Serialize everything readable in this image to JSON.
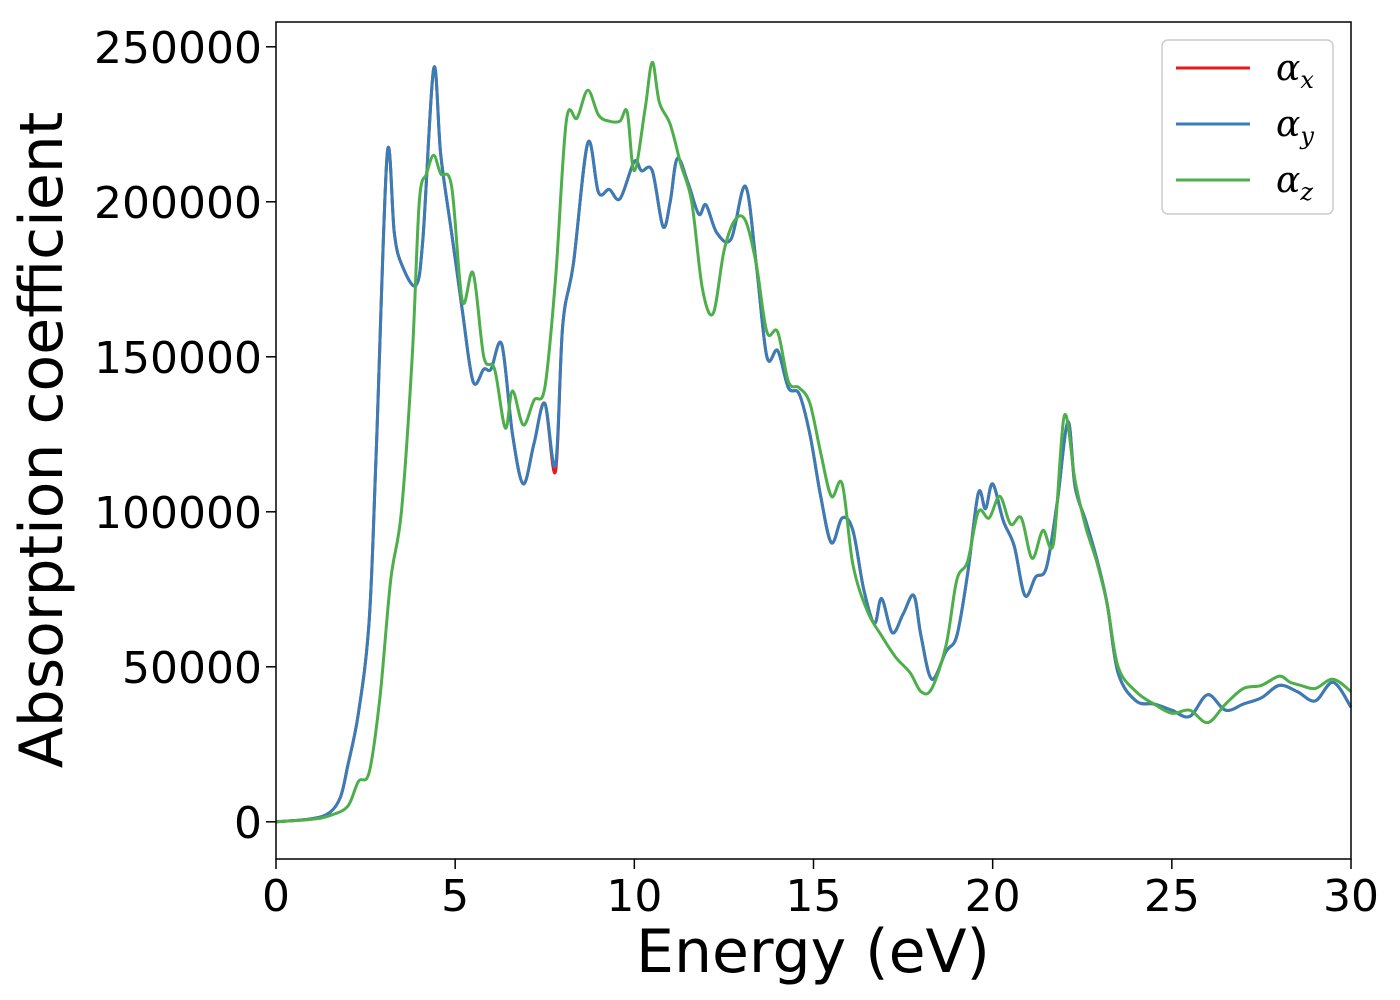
{
  "chart_data": {
    "type": "line",
    "title": "",
    "xlabel": "Energy (eV)",
    "ylabel": "Absorption coefficient",
    "xlim": [
      0,
      30
    ],
    "ylim": [
      -12000,
      258000
    ],
    "xticks": [
      0,
      5,
      10,
      15,
      20,
      25,
      30
    ],
    "yticks": [
      0,
      50000,
      100000,
      150000,
      200000,
      250000
    ],
    "grid": false,
    "legend_position": "top-right",
    "series": [
      {
        "name": "α_x",
        "symbol": "α",
        "subscript": "x",
        "color": "#e41a1c",
        "x": [
          0,
          1,
          1.5,
          1.8,
          2.0,
          2.3,
          2.6,
          2.8,
          3.1,
          3.3,
          3.5,
          3.9,
          4.1,
          4.4,
          4.6,
          4.9,
          5.2,
          5.5,
          5.8,
          6.0,
          6.3,
          6.6,
          6.9,
          7.2,
          7.5,
          7.8,
          8.0,
          8.3,
          8.7,
          9.0,
          9.3,
          9.6,
          10.0,
          10.2,
          10.5,
          10.8,
          11.0,
          11.2,
          11.5,
          11.8,
          12.0,
          12.3,
          12.7,
          13.1,
          13.4,
          13.7,
          14.0,
          14.3,
          14.6,
          14.9,
          15.2,
          15.5,
          15.8,
          16.1,
          16.4,
          16.7,
          16.9,
          17.2,
          17.5,
          17.8,
          18.0,
          18.3,
          18.7,
          19.0,
          19.3,
          19.6,
          19.8,
          20.0,
          20.3,
          20.6,
          20.9,
          21.2,
          21.5,
          21.8,
          22.1,
          22.3,
          22.6,
          22.9,
          23.2,
          23.5,
          24.0,
          24.5,
          25.0,
          25.5,
          26.0,
          26.5,
          27.0,
          27.5,
          28.0,
          28.5,
          29.0,
          29.5,
          30.0
        ],
        "y": [
          0,
          1000,
          3000,
          8000,
          18000,
          35000,
          65000,
          120000,
          215000,
          190000,
          180000,
          173000,
          188000,
          243000,
          215000,
          190000,
          165000,
          142000,
          146000,
          146000,
          154000,
          125000,
          109000,
          122000,
          135000,
          113000,
          160000,
          180000,
          219000,
          203000,
          204000,
          201000,
          213000,
          210000,
          210000,
          192000,
          200000,
          214000,
          206000,
          196000,
          199000,
          190000,
          188000,
          205000,
          180000,
          150000,
          152000,
          140000,
          138000,
          125000,
          105000,
          90000,
          98000,
          94000,
          75000,
          64000,
          72000,
          61000,
          67000,
          73000,
          60000,
          46000,
          55000,
          60000,
          80000,
          106000,
          101000,
          109000,
          97000,
          89000,
          73000,
          79000,
          82000,
          103000,
          129000,
          108000,
          97000,
          85000,
          70000,
          48000,
          39000,
          38000,
          36000,
          34000,
          41000,
          36000,
          38000,
          40000,
          44000,
          42000,
          39000,
          45000,
          37000
        ]
      },
      {
        "name": "α_y",
        "symbol": "α",
        "subscript": "y",
        "color": "#377eb8",
        "x": [
          0,
          1,
          1.5,
          1.8,
          2.0,
          2.3,
          2.6,
          2.8,
          3.1,
          3.3,
          3.5,
          3.9,
          4.1,
          4.4,
          4.6,
          4.9,
          5.2,
          5.5,
          5.8,
          6.0,
          6.3,
          6.6,
          6.9,
          7.2,
          7.5,
          7.8,
          8.0,
          8.3,
          8.7,
          9.0,
          9.3,
          9.6,
          10.0,
          10.2,
          10.5,
          10.8,
          11.0,
          11.2,
          11.5,
          11.8,
          12.0,
          12.3,
          12.7,
          13.1,
          13.4,
          13.7,
          14.0,
          14.3,
          14.6,
          14.9,
          15.2,
          15.5,
          15.8,
          16.1,
          16.4,
          16.7,
          16.9,
          17.2,
          17.5,
          17.8,
          18.0,
          18.3,
          18.7,
          19.0,
          19.3,
          19.6,
          19.8,
          20.0,
          20.3,
          20.6,
          20.9,
          21.2,
          21.5,
          21.8,
          22.1,
          22.3,
          22.6,
          22.9,
          23.2,
          23.5,
          24.0,
          24.5,
          25.0,
          25.5,
          26.0,
          26.5,
          27.0,
          27.5,
          28.0,
          28.5,
          29.0,
          29.5,
          30.0
        ],
        "y": [
          0,
          1000,
          3000,
          8000,
          18000,
          35000,
          65000,
          120000,
          215000,
          190000,
          180000,
          173000,
          188000,
          243000,
          215000,
          190000,
          165000,
          142000,
          146000,
          146000,
          154000,
          125000,
          109000,
          122000,
          135000,
          115000,
          160000,
          180000,
          219000,
          203000,
          204000,
          201000,
          213000,
          210000,
          210000,
          192000,
          200000,
          214000,
          206000,
          196000,
          199000,
          190000,
          188000,
          205000,
          180000,
          150000,
          152000,
          140000,
          138000,
          125000,
          105000,
          90000,
          98000,
          94000,
          75000,
          64000,
          72000,
          61000,
          67000,
          73000,
          60000,
          46000,
          55000,
          60000,
          80000,
          106000,
          101000,
          109000,
          97000,
          89000,
          73000,
          79000,
          82000,
          103000,
          129000,
          108000,
          97000,
          85000,
          70000,
          48000,
          39000,
          38000,
          36000,
          34000,
          41000,
          36000,
          38000,
          40000,
          44000,
          42000,
          39000,
          45000,
          37000
        ]
      },
      {
        "name": "α_z",
        "symbol": "α",
        "subscript": "z",
        "color": "#4daf4a",
        "x": [
          0,
          1,
          1.5,
          2.0,
          2.3,
          2.6,
          2.9,
          3.2,
          3.5,
          3.8,
          4.0,
          4.2,
          4.4,
          4.6,
          4.9,
          5.2,
          5.5,
          5.8,
          6.1,
          6.4,
          6.6,
          6.9,
          7.2,
          7.5,
          7.8,
          8.1,
          8.4,
          8.7,
          9.0,
          9.3,
          9.6,
          9.8,
          10.0,
          10.3,
          10.5,
          10.7,
          11.0,
          11.3,
          11.6,
          11.9,
          12.2,
          12.5,
          12.8,
          13.1,
          13.4,
          13.7,
          14.0,
          14.3,
          14.6,
          14.9,
          15.2,
          15.5,
          15.8,
          16.1,
          16.5,
          16.9,
          17.3,
          17.7,
          18.0,
          18.3,
          18.7,
          19.0,
          19.3,
          19.6,
          19.9,
          20.2,
          20.5,
          20.8,
          21.1,
          21.4,
          21.7,
          22.0,
          22.3,
          22.6,
          22.9,
          23.2,
          23.5,
          24.0,
          24.5,
          25.0,
          25.5,
          26.0,
          26.5,
          27.0,
          27.5,
          28.0,
          28.3,
          28.6,
          29.0,
          29.5,
          30.0
        ],
        "y": [
          0,
          800,
          2000,
          5000,
          13000,
          16000,
          40000,
          78000,
          100000,
          150000,
          200000,
          209000,
          215000,
          209000,
          205000,
          168000,
          177000,
          150000,
          146000,
          127000,
          139000,
          128000,
          136000,
          140000,
          175000,
          226000,
          227000,
          236000,
          228000,
          226000,
          226000,
          229000,
          210000,
          230000,
          245000,
          232000,
          225000,
          212000,
          200000,
          172000,
          164000,
          184000,
          194000,
          194000,
          180000,
          158000,
          158000,
          142000,
          140000,
          135000,
          119000,
          105000,
          109000,
          83000,
          68000,
          60000,
          53000,
          48000,
          42000,
          43000,
          57000,
          78000,
          84000,
          100000,
          98000,
          105000,
          96000,
          98000,
          85000,
          94000,
          90000,
          131000,
          110000,
          95000,
          84000,
          70000,
          50000,
          42000,
          38000,
          35000,
          36000,
          32000,
          38000,
          43000,
          44000,
          47000,
          45000,
          44000,
          43000,
          46000,
          42000
        ]
      }
    ]
  }
}
